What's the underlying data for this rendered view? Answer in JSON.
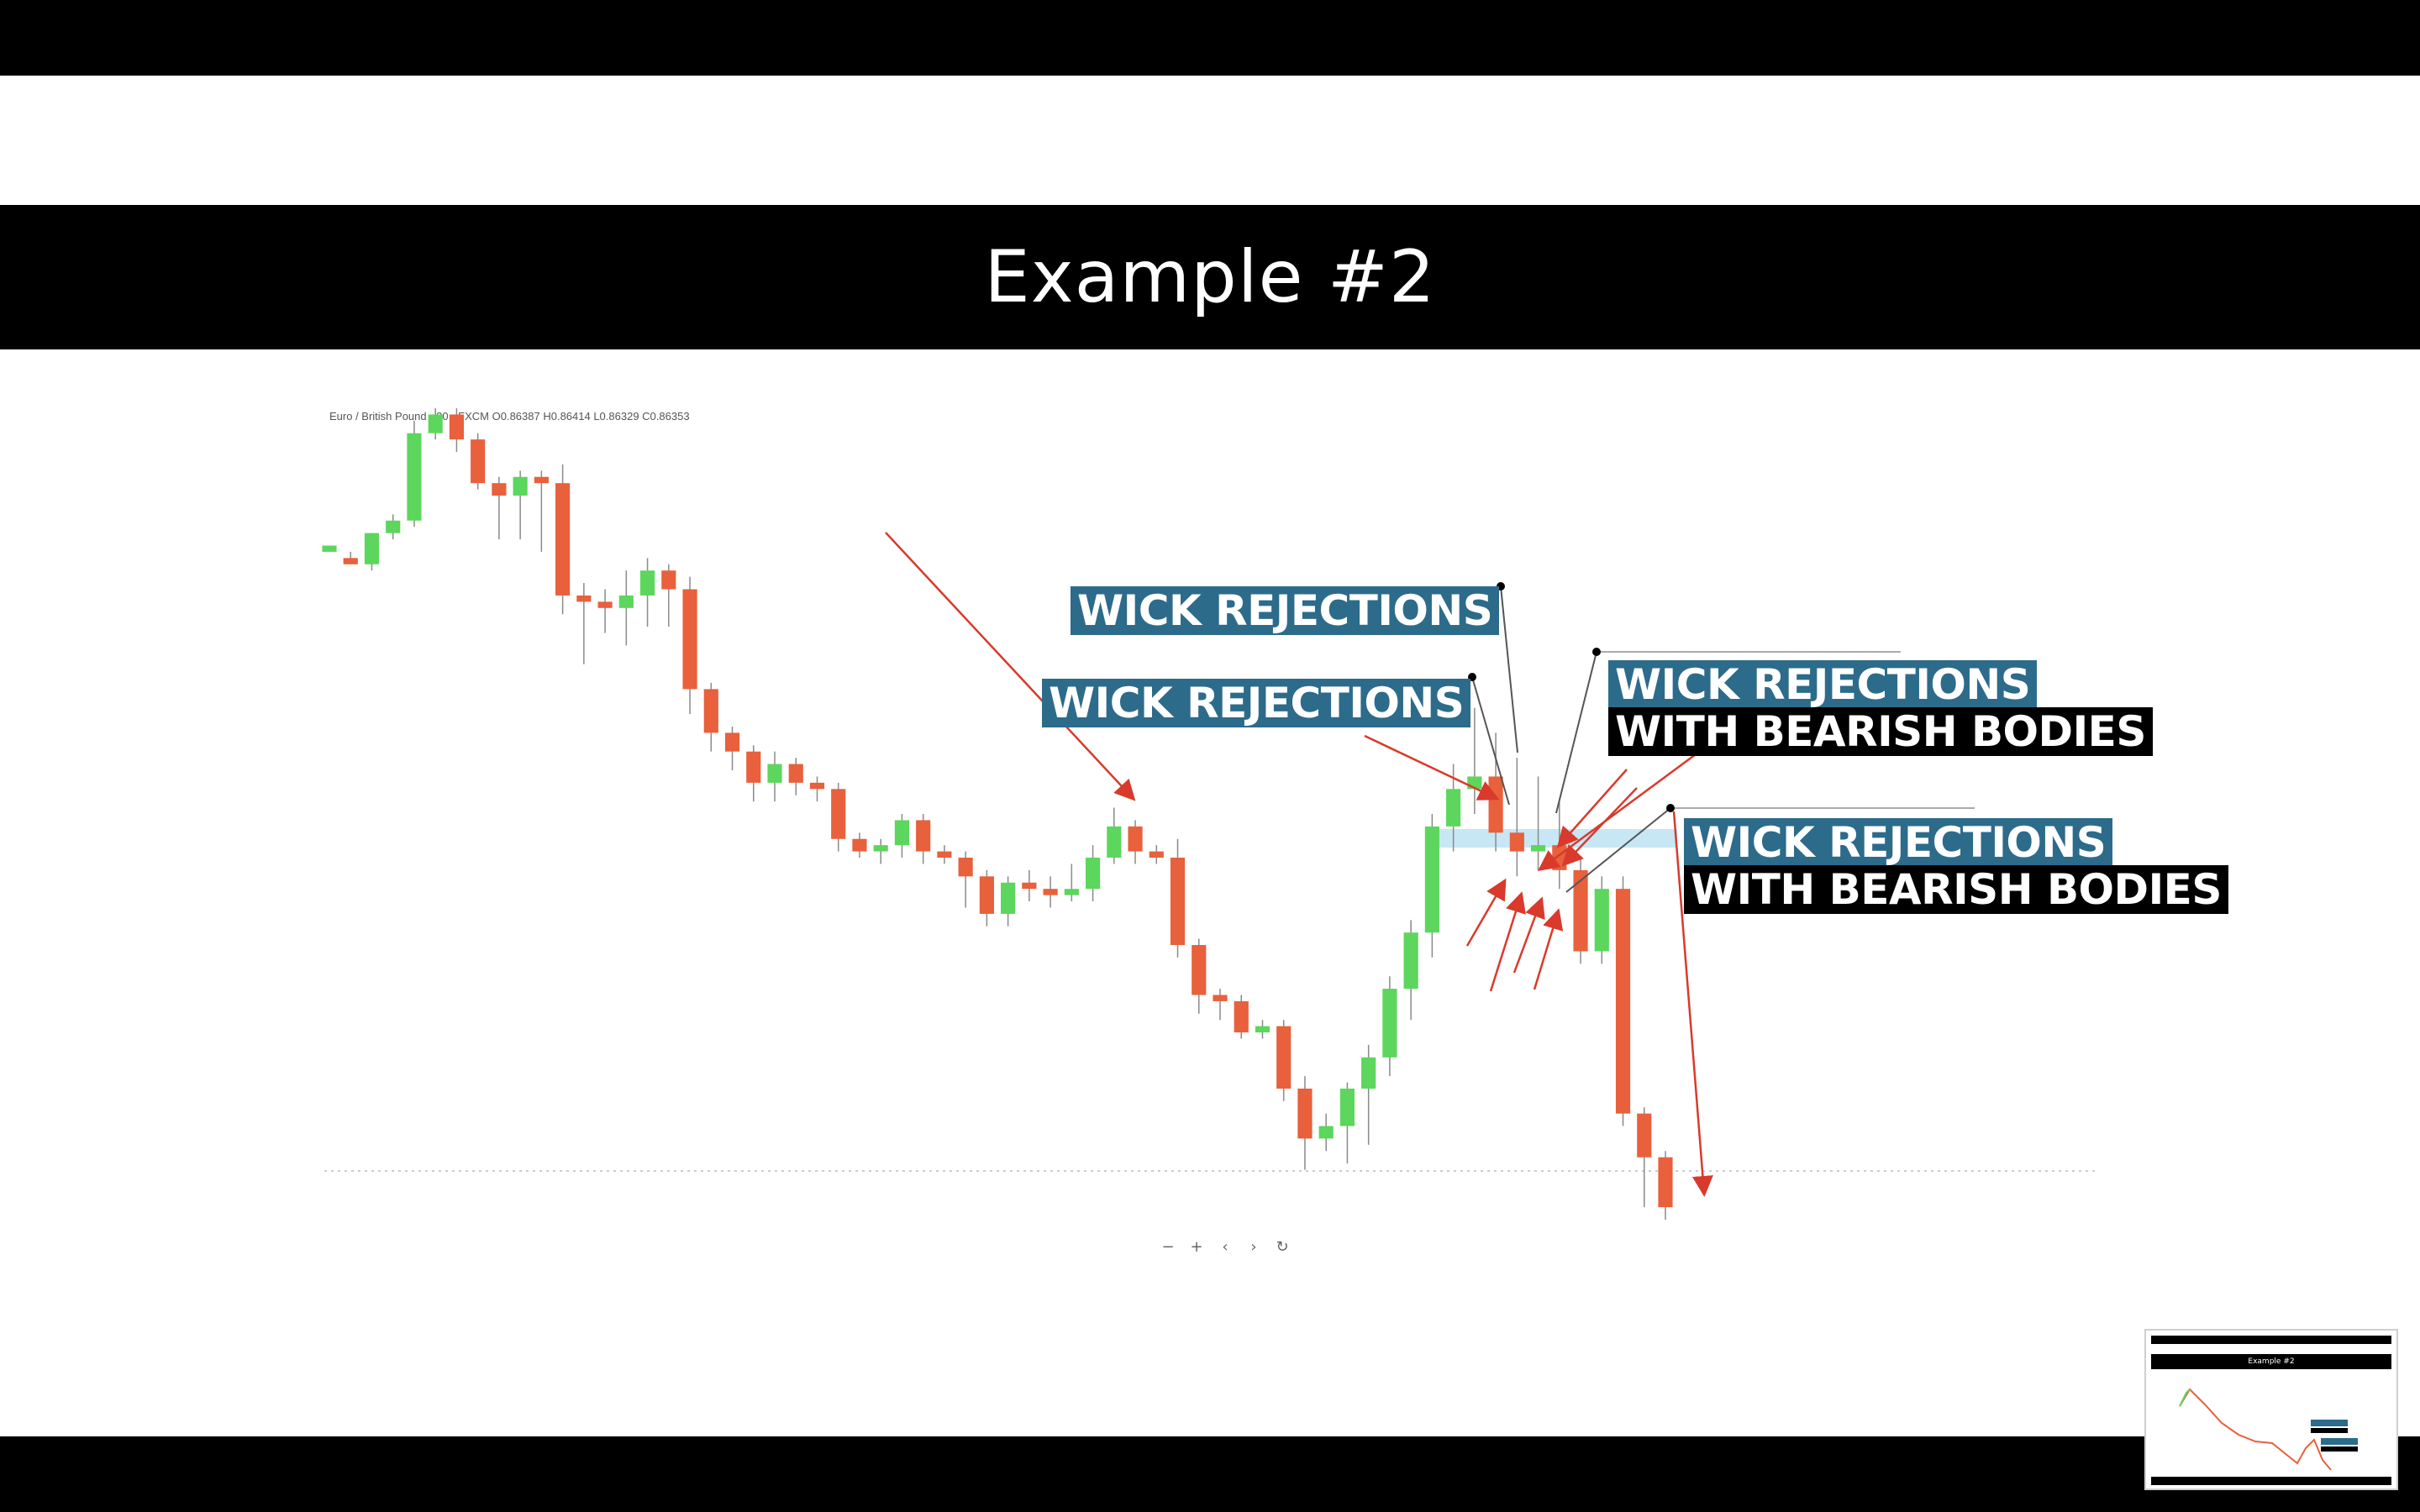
{
  "slide": {
    "title": "Example #2"
  },
  "chart": {
    "symbol_text": "Euro / British Pound · 30 · FXCM  O0.86387 H0.86414 L0.86329 C0.86353",
    "colors": {
      "bull": "#5cd65c",
      "bear": "#e8603c",
      "wick": "#8a8a8a",
      "arrow": "#d93a2b",
      "zone": "#bde3f2"
    },
    "annotations": [
      {
        "text": "WICK REJECTIONS",
        "style": "blue"
      },
      {
        "text": "WICK REJECTIONS",
        "style": "blue"
      },
      {
        "text": "WICK REJECTIONS",
        "style": "blue"
      },
      {
        "text": "WITH BEARISH BODIES",
        "style": "black"
      },
      {
        "text": "WICK REJECTIONS",
        "style": "blue"
      },
      {
        "text": "WITH BEARISH BODIES",
        "style": "black"
      }
    ],
    "candles": [
      [
        0.861,
        0.8611,
        0.8609,
        0.8609
      ],
      [
        0.8609,
        0.8608,
        0.861,
        0.8608
      ],
      [
        0.8608,
        0.8613,
        0.8613,
        0.8607
      ],
      [
        0.8613,
        0.8615,
        0.8616,
        0.8612
      ],
      [
        0.8615,
        0.8629,
        0.8631,
        0.8614
      ],
      [
        0.8629,
        0.8632,
        0.8633,
        0.8628
      ],
      [
        0.8632,
        0.8628,
        0.8633,
        0.8626
      ],
      [
        0.8628,
        0.8621,
        0.8629,
        0.862
      ],
      [
        0.8621,
        0.8619,
        0.8622,
        0.8612
      ],
      [
        0.8619,
        0.8622,
        0.8623,
        0.8612
      ],
      [
        0.8622,
        0.8621,
        0.8623,
        0.861
      ],
      [
        0.8621,
        0.8603,
        0.8624,
        0.86
      ],
      [
        0.8603,
        0.8602,
        0.8605,
        0.8592
      ],
      [
        0.8602,
        0.8601,
        0.8604,
        0.8597
      ],
      [
        0.8601,
        0.8603,
        0.8607,
        0.8595
      ],
      [
        0.8603,
        0.8607,
        0.8609,
        0.8598
      ],
      [
        0.8607,
        0.8604,
        0.8608,
        0.8598
      ],
      [
        0.8604,
        0.8588,
        0.8606,
        0.8584
      ],
      [
        0.8588,
        0.8581,
        0.8589,
        0.8578
      ],
      [
        0.8581,
        0.8578,
        0.8582,
        0.8575
      ],
      [
        0.8578,
        0.8573,
        0.8579,
        0.857
      ],
      [
        0.8573,
        0.8576,
        0.8578,
        0.857
      ],
      [
        0.8576,
        0.8573,
        0.8577,
        0.8571
      ],
      [
        0.8573,
        0.8572,
        0.8574,
        0.857
      ],
      [
        0.8572,
        0.8564,
        0.8573,
        0.8562
      ],
      [
        0.8564,
        0.8562,
        0.8565,
        0.8561
      ],
      [
        0.8562,
        0.8563,
        0.8564,
        0.856
      ],
      [
        0.8563,
        0.8567,
        0.8568,
        0.8561
      ],
      [
        0.8567,
        0.8562,
        0.8568,
        0.856
      ],
      [
        0.8562,
        0.8561,
        0.8563,
        0.856
      ],
      [
        0.8561,
        0.8558,
        0.8562,
        0.8553
      ],
      [
        0.8558,
        0.8552,
        0.8559,
        0.855
      ],
      [
        0.8552,
        0.8557,
        0.8558,
        0.855
      ],
      [
        0.8557,
        0.8556,
        0.8559,
        0.8554
      ],
      [
        0.8556,
        0.8555,
        0.8558,
        0.8553
      ],
      [
        0.8555,
        0.8556,
        0.856,
        0.8554
      ],
      [
        0.8556,
        0.8561,
        0.8563,
        0.8554
      ],
      [
        0.8561,
        0.8566,
        0.8569,
        0.856
      ],
      [
        0.8566,
        0.8562,
        0.8567,
        0.856
      ],
      [
        0.8562,
        0.8561,
        0.8563,
        0.856
      ],
      [
        0.8561,
        0.8547,
        0.8564,
        0.8545
      ],
      [
        0.8547,
        0.8539,
        0.8548,
        0.8536
      ],
      [
        0.8539,
        0.8538,
        0.854,
        0.8535
      ],
      [
        0.8538,
        0.8533,
        0.8539,
        0.8532
      ],
      [
        0.8533,
        0.8534,
        0.8535,
        0.8532
      ],
      [
        0.8534,
        0.8524,
        0.8535,
        0.8522
      ],
      [
        0.8524,
        0.8516,
        0.8526,
        0.8511
      ],
      [
        0.8516,
        0.8518,
        0.852,
        0.8514
      ],
      [
        0.8518,
        0.8524,
        0.8525,
        0.8512
      ],
      [
        0.8524,
        0.8529,
        0.8531,
        0.8515
      ],
      [
        0.8529,
        0.854,
        0.8542,
        0.8526
      ],
      [
        0.854,
        0.8549,
        0.8551,
        0.8535
      ],
      [
        0.8549,
        0.8566,
        0.8568,
        0.8545
      ],
      [
        0.8566,
        0.8572,
        0.8576,
        0.8562
      ],
      [
        0.8572,
        0.8574,
        0.8585,
        0.8568
      ],
      [
        0.8574,
        0.8565,
        0.8581,
        0.8562
      ],
      [
        0.8565,
        0.8562,
        0.8577,
        0.8558
      ],
      [
        0.8562,
        0.8563,
        0.8574,
        0.8559
      ],
      [
        0.8563,
        0.8559,
        0.857,
        0.8556
      ],
      [
        0.8559,
        0.8546,
        0.8561,
        0.8544
      ],
      [
        0.8546,
        0.8556,
        0.8558,
        0.8544
      ],
      [
        0.8556,
        0.852,
        0.8558,
        0.8518
      ],
      [
        0.852,
        0.8513,
        0.8521,
        0.8505
      ],
      [
        0.8513,
        0.8505,
        0.8514,
        0.8503
      ]
    ]
  },
  "controls": [
    "−",
    "+",
    "‹",
    "›",
    "↻"
  ],
  "thumbnail": {
    "title": "Example #2"
  }
}
